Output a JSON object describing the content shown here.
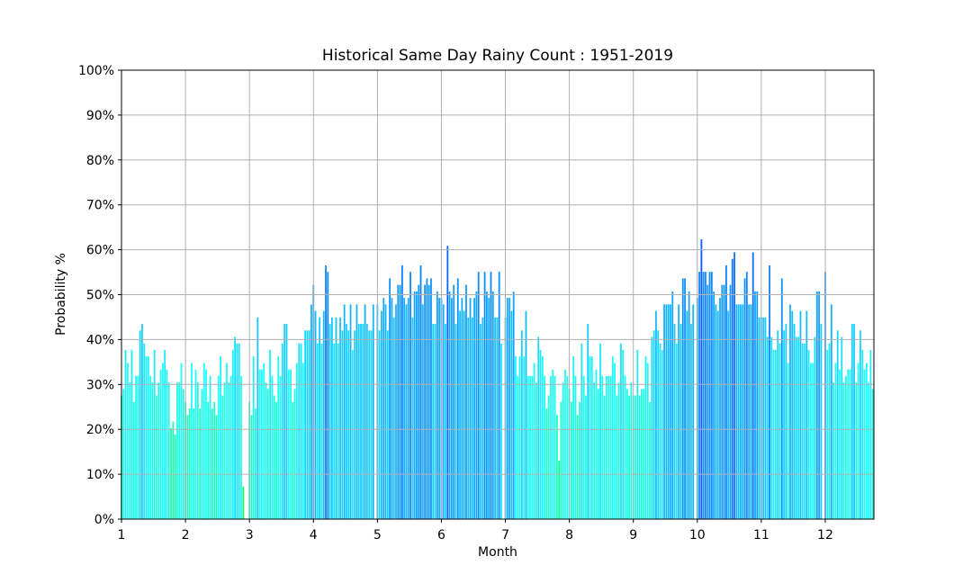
{
  "chart_data": {
    "type": "bar",
    "title": "Historical Same Day Rainy Count : 1951-2019",
    "xlabel": "Month",
    "ylabel": "Probability %",
    "years_in_sample": 69,
    "xlim": [
      1,
      12.76
    ],
    "ylim": [
      0,
      100
    ],
    "grid": true,
    "x_ticks": [
      "1",
      "2",
      "3",
      "4",
      "5",
      "6",
      "7",
      "8",
      "9",
      "10",
      "11",
      "12"
    ],
    "y_ticks": [
      "0%",
      "10%",
      "20%",
      "30%",
      "40%",
      "50%",
      "60%",
      "70%",
      "80%",
      "90%",
      "100%"
    ],
    "value_unit": "rainy-year count out of 69 per calendar day (probability = count/69)",
    "months": [
      {
        "month": 1,
        "counts": [
          19,
          20,
          26,
          24,
          21,
          26,
          18,
          22,
          22,
          29,
          30,
          27,
          25,
          25,
          22,
          21,
          26,
          19,
          21,
          23,
          24,
          26,
          23,
          21,
          14,
          15,
          13,
          21,
          21,
          24,
          20
        ]
      },
      {
        "month": 2,
        "counts": [
          18,
          16,
          17,
          24,
          17,
          23,
          21,
          17,
          20,
          24,
          23,
          18,
          22,
          17,
          18,
          16,
          22,
          25,
          19,
          21,
          24,
          21,
          22,
          26,
          28,
          27,
          27,
          22,
          5
        ]
      },
      {
        "month": 3,
        "counts": [
          18,
          16,
          25,
          17,
          31,
          23,
          23,
          24,
          21,
          20,
          26,
          22,
          19,
          18,
          25,
          22,
          27,
          30,
          30,
          23,
          23,
          18,
          20,
          24,
          27,
          27,
          24,
          29,
          29,
          29,
          33
        ]
      },
      {
        "month": 4,
        "counts": [
          36,
          32,
          27,
          31,
          27,
          32,
          39,
          38,
          30,
          31,
          27,
          31,
          27,
          31,
          29,
          33,
          30,
          29,
          33,
          26,
          29,
          33,
          30,
          30,
          30,
          33,
          30,
          29,
          29,
          33
        ]
      },
      {
        "month": 5,
        "counts": [
          33,
          29,
          32,
          34,
          33,
          29,
          37,
          34,
          31,
          33,
          36,
          36,
          39,
          34,
          33,
          34,
          38,
          31,
          35,
          35,
          36,
          39,
          33,
          36,
          37,
          36,
          37,
          30,
          30,
          35,
          34
        ]
      },
      {
        "month": 6,
        "counts": [
          34,
          33,
          30,
          42,
          35,
          34,
          36,
          30,
          37,
          32,
          34,
          32,
          36,
          31,
          34,
          31,
          34,
          35,
          38,
          30,
          31,
          38,
          35,
          34,
          38,
          35,
          31,
          31,
          38,
          27
        ]
      },
      {
        "month": 7,
        "counts": [
          31,
          34,
          34,
          32,
          35,
          25,
          22,
          25,
          29,
          25,
          32,
          22,
          22,
          22,
          24,
          21,
          28,
          26,
          25,
          22,
          17,
          19,
          22,
          23,
          22,
          16,
          9,
          18,
          21,
          23,
          22
        ]
      },
      {
        "month": 8,
        "counts": [
          20,
          18,
          25,
          22,
          16,
          18,
          27,
          22,
          19,
          30,
          25,
          25,
          21,
          23,
          20,
          27,
          22,
          19,
          22,
          22,
          22,
          25,
          24,
          19,
          21,
          27,
          26,
          22,
          20,
          19,
          21
        ]
      },
      {
        "month": 9,
        "counts": [
          19,
          19,
          26,
          19,
          20,
          20,
          25,
          24,
          18,
          28,
          29,
          32,
          29,
          27,
          26,
          33,
          33,
          33,
          33,
          35,
          30,
          27,
          33,
          30,
          37,
          37,
          32,
          35,
          30,
          33
        ]
      },
      {
        "month": 10,
        "counts": [
          34,
          38,
          43,
          38,
          38,
          36,
          38,
          38,
          35,
          33,
          32,
          34,
          36,
          36,
          39,
          32,
          36,
          40,
          41,
          33,
          33,
          33,
          33,
          37,
          38,
          33,
          33,
          41,
          35,
          35,
          31
        ]
      },
      {
        "month": 11,
        "counts": [
          31,
          31,
          31,
          28,
          39,
          28,
          26,
          26,
          29,
          27,
          37,
          29,
          30,
          24,
          33,
          32,
          30,
          28,
          28,
          32,
          27,
          27,
          32,
          26,
          24,
          24,
          28,
          35,
          35,
          30
        ]
      },
      {
        "month": 12,
        "counts": [
          38,
          26,
          27,
          33,
          21,
          24,
          29,
          23,
          28,
          21,
          22,
          23,
          23,
          30,
          30,
          21,
          24,
          29,
          26,
          23,
          24,
          21,
          26,
          20
        ]
      }
    ]
  }
}
